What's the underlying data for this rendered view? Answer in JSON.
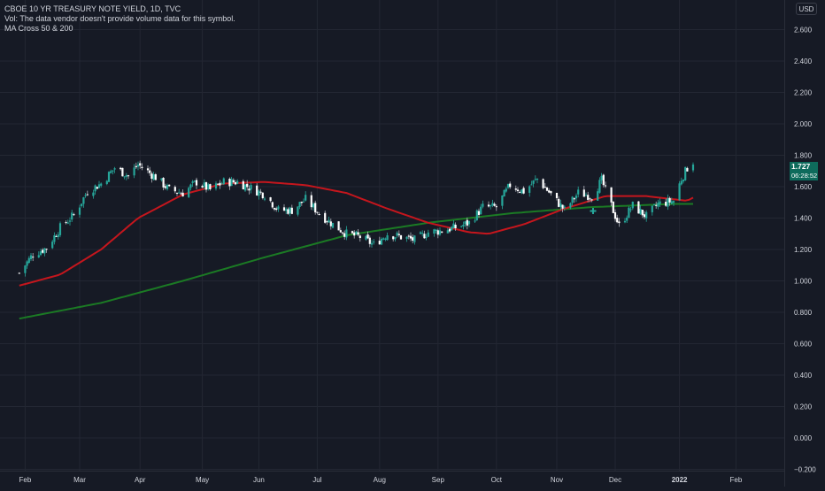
{
  "legend": {
    "symbol": "CBOE 10 YR TREASURY NOTE YIELD, 1D, TVC",
    "volume_note": "Vol: The data vendor doesn't provide volume data for this symbol.",
    "indicator": "MA Cross 50 & 200"
  },
  "currency": "USD",
  "last_price": {
    "value": "1.727",
    "countdown": "06:28:52",
    "color": "#0e6b5c"
  },
  "colors": {
    "background": "#161a25",
    "grid": "#232733",
    "up": "#26a69a",
    "down": "#ffffff",
    "wick": "#b2b5be",
    "ma50": "#c5161d",
    "ma200": "#1b7a24",
    "text": "#d1d4dc"
  },
  "chart_data": {
    "type": "candlestick",
    "title": "CBOE 10 YR TREASURY NOTE YIELD, 1D, TVC",
    "ylim": [
      -0.2,
      2.7
    ],
    "grid": true,
    "y_ticks": [
      "2.600",
      "2.400",
      "2.200",
      "2.000",
      "1.800",
      "1.600",
      "1.400",
      "1.200",
      "1.000",
      "0.800",
      "0.600",
      "0.400",
      "0.200",
      "0.000",
      "−0.200"
    ],
    "x_tick_labels": [
      "Feb",
      "Mar",
      "Apr",
      "May",
      "Jun",
      "Jul",
      "Aug",
      "Sep",
      "Oct",
      "Nov",
      "Dec",
      "2022",
      "Feb"
    ],
    "close_path": [
      [
        "2021-01-29",
        1.05
      ],
      [
        "2021-02-05",
        1.17
      ],
      [
        "2021-02-12",
        1.21
      ],
      [
        "2021-02-19",
        1.34
      ],
      [
        "2021-02-26",
        1.42
      ],
      [
        "2021-03-05",
        1.57
      ],
      [
        "2021-03-12",
        1.62
      ],
      [
        "2021-03-19",
        1.72
      ],
      [
        "2021-03-26",
        1.67
      ],
      [
        "2021-03-31",
        1.74
      ],
      [
        "2021-04-09",
        1.66
      ],
      [
        "2021-04-16",
        1.58
      ],
      [
        "2021-04-23",
        1.56
      ],
      [
        "2021-04-30",
        1.63
      ],
      [
        "2021-05-07",
        1.58
      ],
      [
        "2021-05-14",
        1.63
      ],
      [
        "2021-05-21",
        1.63
      ],
      [
        "2021-05-28",
        1.59
      ],
      [
        "2021-06-04",
        1.55
      ],
      [
        "2021-06-11",
        1.45
      ],
      [
        "2021-06-18",
        1.45
      ],
      [
        "2021-06-25",
        1.52
      ],
      [
        "2021-07-02",
        1.43
      ],
      [
        "2021-07-09",
        1.36
      ],
      [
        "2021-07-16",
        1.3
      ],
      [
        "2021-07-23",
        1.28
      ],
      [
        "2021-07-30",
        1.23
      ],
      [
        "2021-08-06",
        1.3
      ],
      [
        "2021-08-13",
        1.28
      ],
      [
        "2021-08-20",
        1.26
      ],
      [
        "2021-08-27",
        1.31
      ],
      [
        "2021-09-03",
        1.32
      ],
      [
        "2021-09-10",
        1.34
      ],
      [
        "2021-09-17",
        1.37
      ],
      [
        "2021-09-24",
        1.47
      ],
      [
        "2021-10-01",
        1.47
      ],
      [
        "2021-10-08",
        1.61
      ],
      [
        "2021-10-15",
        1.57
      ],
      [
        "2021-10-22",
        1.65
      ],
      [
        "2021-10-29",
        1.55
      ],
      [
        "2021-11-05",
        1.45
      ],
      [
        "2021-11-12",
        1.56
      ],
      [
        "2021-11-19",
        1.54
      ],
      [
        "2021-11-24",
        1.64
      ],
      [
        "2021-12-03",
        1.35
      ],
      [
        "2021-12-10",
        1.48
      ],
      [
        "2021-12-17",
        1.41
      ],
      [
        "2021-12-23",
        1.49
      ],
      [
        "2021-12-31",
        1.51
      ],
      [
        "2022-01-04",
        1.65
      ],
      [
        "2022-01-07",
        1.72
      ],
      [
        "2022-01-10",
        1.76
      ]
    ],
    "series": [
      {
        "name": "MA 50",
        "color": "#c5161d",
        "points": [
          [
            "2021-01-29",
            0.97
          ],
          [
            "2021-02-19",
            1.04
          ],
          [
            "2021-03-12",
            1.2
          ],
          [
            "2021-03-31",
            1.4
          ],
          [
            "2021-04-23",
            1.55
          ],
          [
            "2021-05-14",
            1.62
          ],
          [
            "2021-06-04",
            1.63
          ],
          [
            "2021-06-25",
            1.61
          ],
          [
            "2021-07-16",
            1.56
          ],
          [
            "2021-08-06",
            1.46
          ],
          [
            "2021-08-27",
            1.37
          ],
          [
            "2021-09-17",
            1.31
          ],
          [
            "2021-09-27",
            1.3
          ],
          [
            "2021-10-15",
            1.36
          ],
          [
            "2021-11-05",
            1.46
          ],
          [
            "2021-11-26",
            1.54
          ],
          [
            "2021-12-17",
            1.54
          ],
          [
            "2022-01-07",
            1.51
          ],
          [
            "2022-01-10",
            1.53
          ]
        ]
      },
      {
        "name": "MA 200",
        "color": "#1b7a24",
        "points": [
          [
            "2021-01-29",
            0.76
          ],
          [
            "2021-03-12",
            0.86
          ],
          [
            "2021-04-23",
            1.0
          ],
          [
            "2021-06-04",
            1.15
          ],
          [
            "2021-07-16",
            1.29
          ],
          [
            "2021-08-27",
            1.37
          ],
          [
            "2021-10-08",
            1.43
          ],
          [
            "2021-11-19",
            1.47
          ],
          [
            "2021-12-31",
            1.49
          ],
          [
            "2022-01-10",
            1.49
          ]
        ]
      }
    ]
  }
}
